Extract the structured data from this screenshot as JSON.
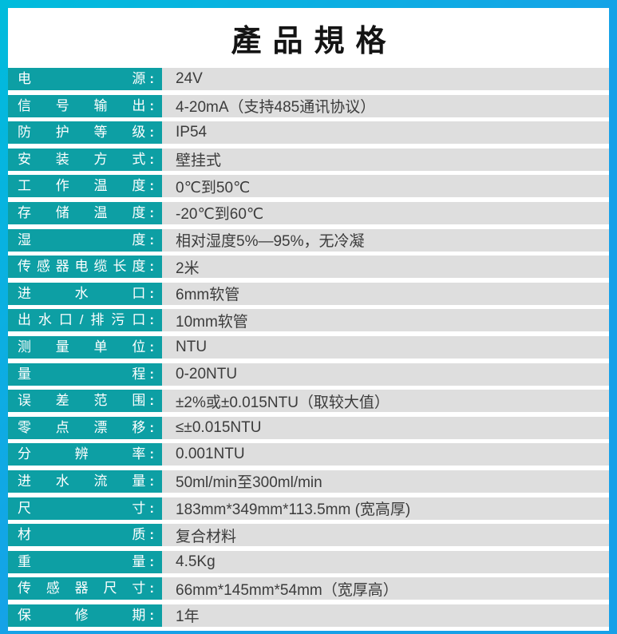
{
  "header": {
    "title": "產品規格"
  },
  "colors": {
    "frame_start": "#00bcdc",
    "frame_end": "#17a0e8",
    "header_bg": "#ffffff",
    "label_bg": "#0d9fa4",
    "value_bg": "#dedede",
    "label_text": "#ffffff",
    "value_text": "#3c3c3c",
    "title_text": "#141414",
    "gap_white": "#ffffff"
  },
  "table": {
    "colon": ":",
    "rows": [
      {
        "label": "电源",
        "value": "24V"
      },
      {
        "label": "信号输出",
        "value": "4-20mA（支持485通讯协议）"
      },
      {
        "label": "防护等级",
        "value": "IP54"
      },
      {
        "label": "安装方式",
        "value": "壁挂式"
      },
      {
        "label": "工作温度",
        "value": "0℃到50℃"
      },
      {
        "label": "存储温度",
        "value": "-20℃到60℃"
      },
      {
        "label": "湿度",
        "value": "相对湿度5%—95%，无冷凝"
      },
      {
        "label": "传感器电缆长度",
        "value": "2米"
      },
      {
        "label": "进水口",
        "value": "6mm软管"
      },
      {
        "label": "出水口/排污口",
        "value": "10mm软管"
      },
      {
        "label": "测量单位",
        "value": "NTU"
      },
      {
        "label": "量程",
        "value": "0-20NTU"
      },
      {
        "label": "误差范围",
        "value": "±2%或±0.015NTU（取较大值）"
      },
      {
        "label": "零点漂移",
        "value": "≤±0.015NTU"
      },
      {
        "label": "分辨率",
        "value": "0.001NTU"
      },
      {
        "label": "进水流量",
        "value": "50ml/min至300ml/min"
      },
      {
        "label": "尺寸",
        "value": "183mm*349mm*113.5mm (宽高厚)"
      },
      {
        "label": "材质",
        "value": "复合材料"
      },
      {
        "label": "重量",
        "value": "4.5Kg"
      },
      {
        "label": "传感器尺寸",
        "value": "66mm*145mm*54mm（宽厚高）"
      },
      {
        "label": "保修期",
        "value": "1年"
      }
    ]
  }
}
